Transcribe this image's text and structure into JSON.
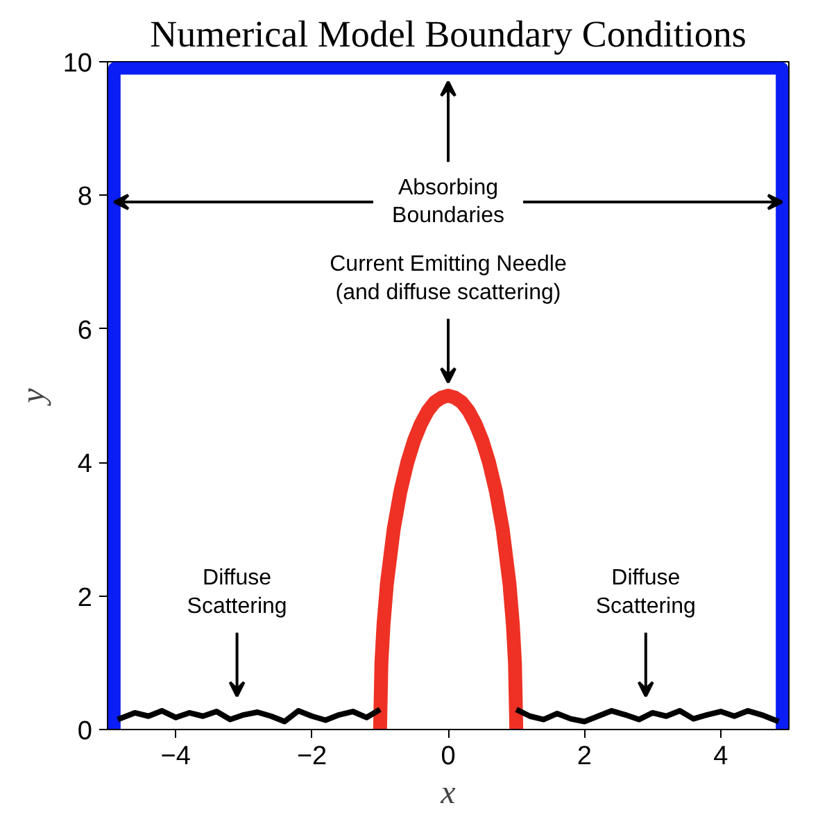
{
  "chart_data": {
    "type": "line",
    "title": "Numerical Model Boundary Conditions",
    "xlabel": "x",
    "ylabel": "y",
    "xlim": [
      -5,
      5
    ],
    "ylim": [
      0,
      10
    ],
    "xticks": [
      {
        "value": -4,
        "label": "−4"
      },
      {
        "value": -2,
        "label": "−2"
      },
      0,
      2,
      4
    ],
    "yticks": [
      0,
      2,
      4,
      6,
      8,
      10
    ],
    "grid": false,
    "marker": "none",
    "line_style": "solid",
    "series": [
      {
        "color": "#0a1ef5",
        "x": [
          -4.9,
          -4.9,
          4.9,
          4.9
        ],
        "values": [
          0,
          9.9,
          9.9,
          0
        ]
      },
      {
        "color": "#ee3124",
        "x": [
          -1,
          -0.98,
          -0.95,
          -0.9,
          -0.8,
          -0.7,
          -0.6,
          -0.5,
          -0.4,
          -0.3,
          -0.2,
          -0.1,
          0,
          0.1,
          0.2,
          0.3,
          0.4,
          0.5,
          0.6,
          0.7,
          0.8,
          0.9,
          0.95,
          0.98,
          1
        ],
        "values": [
          0,
          1.0,
          1.56,
          2.18,
          3.0,
          3.57,
          4.0,
          4.33,
          4.58,
          4.77,
          4.9,
          4.97,
          5.0,
          4.97,
          4.9,
          4.77,
          4.58,
          4.33,
          4.0,
          3.57,
          3.0,
          2.18,
          1.56,
          1.0,
          0
        ]
      },
      {
        "color": "#000000",
        "x": [
          -4.85,
          -4.6,
          -4.4,
          -4.2,
          -4.0,
          -3.8,
          -3.6,
          -3.4,
          -3.2,
          -3.0,
          -2.8,
          -2.6,
          -2.4,
          -2.2,
          -2.0,
          -1.8,
          -1.6,
          -1.4,
          -1.2,
          -1.0,
          0,
          1.0,
          1.2,
          1.4,
          1.6,
          1.8,
          2.0,
          2.2,
          2.4,
          2.6,
          2.8,
          3.0,
          3.2,
          3.4,
          3.6,
          3.8,
          4.0,
          4.2,
          4.4,
          4.6,
          4.85
        ],
        "values": [
          0.15,
          0.25,
          0.2,
          0.28,
          0.18,
          0.25,
          0.2,
          0.27,
          0.15,
          0.22,
          0.26,
          0.2,
          0.12,
          0.28,
          0.2,
          0.14,
          0.22,
          0.27,
          0.18,
          0.3,
          null,
          0.3,
          0.2,
          0.15,
          0.24,
          0.16,
          0.12,
          0.2,
          0.28,
          0.22,
          0.15,
          0.25,
          0.2,
          0.28,
          0.16,
          0.22,
          0.27,
          0.2,
          0.28,
          0.22,
          0.12
        ]
      }
    ],
    "annotations": [
      {
        "text": "Absorbing\nBoundaries",
        "x": -4.9,
        "y": 7.9
      },
      "Current Emitting Needle\n(and diffuse scattering)",
      "Diffuse\nScattering",
      "Diffuse\nScattering"
    ]
  }
}
